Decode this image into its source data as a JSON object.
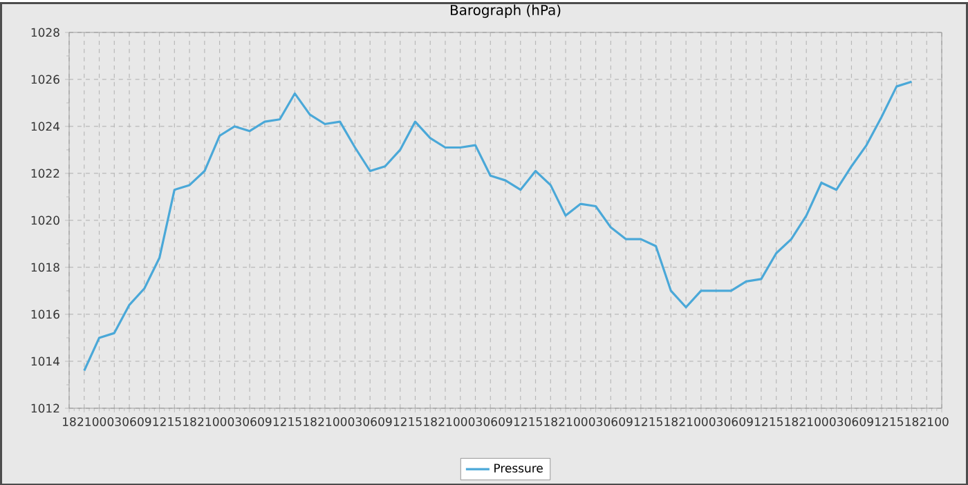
{
  "chart_data": {
    "type": "line",
    "title": "Barograph (hPa)",
    "categories": [
      "18",
      "21",
      "00",
      "03",
      "06",
      "09",
      "12",
      "15",
      "18",
      "21",
      "00",
      "03",
      "06",
      "09",
      "12",
      "15",
      "18",
      "21",
      "00",
      "03",
      "06",
      "09",
      "12",
      "15",
      "18",
      "21",
      "00",
      "03",
      "06",
      "09",
      "12",
      "15",
      "18",
      "21",
      "00",
      "03",
      "06",
      "09",
      "12",
      "15",
      "18",
      "21",
      "00",
      "03",
      "06",
      "09",
      "12",
      "15",
      "18",
      "21",
      "00",
      "03",
      "06",
      "09",
      "12",
      "15",
      "18",
      "21",
      "00"
    ],
    "series": [
      {
        "name": "Pressure",
        "color": "#4aa8d8",
        "values": [
          null,
          1013.6,
          1015.0,
          1015.2,
          1016.4,
          1017.1,
          1018.4,
          1021.3,
          1021.5,
          1022.1,
          1023.6,
          1024.0,
          1023.8,
          1024.2,
          1024.3,
          1025.4,
          1024.5,
          1024.1,
          1024.2,
          1023.1,
          1022.1,
          1022.3,
          1023.0,
          1024.2,
          1023.5,
          1023.1,
          1023.1,
          1023.2,
          1021.9,
          1021.7,
          1021.3,
          1022.1,
          1021.5,
          1020.2,
          1020.7,
          1020.6,
          1019.7,
          1019.2,
          1019.2,
          1018.9,
          1017.0,
          1016.3,
          1017.0,
          1017.0,
          1017.0,
          1017.4,
          1017.5,
          1018.6,
          1019.2,
          1020.2,
          1021.6,
          1021.3,
          1022.3,
          1023.2,
          1024.4,
          1025.7,
          1025.9,
          null,
          null
        ]
      }
    ],
    "ylim": [
      1012,
      1028
    ],
    "yticks": [
      1012,
      1014,
      1016,
      1018,
      1020,
      1022,
      1024,
      1026,
      1028
    ],
    "grid": true,
    "legend": "bottom",
    "marker": "none",
    "line_style": "solid"
  }
}
